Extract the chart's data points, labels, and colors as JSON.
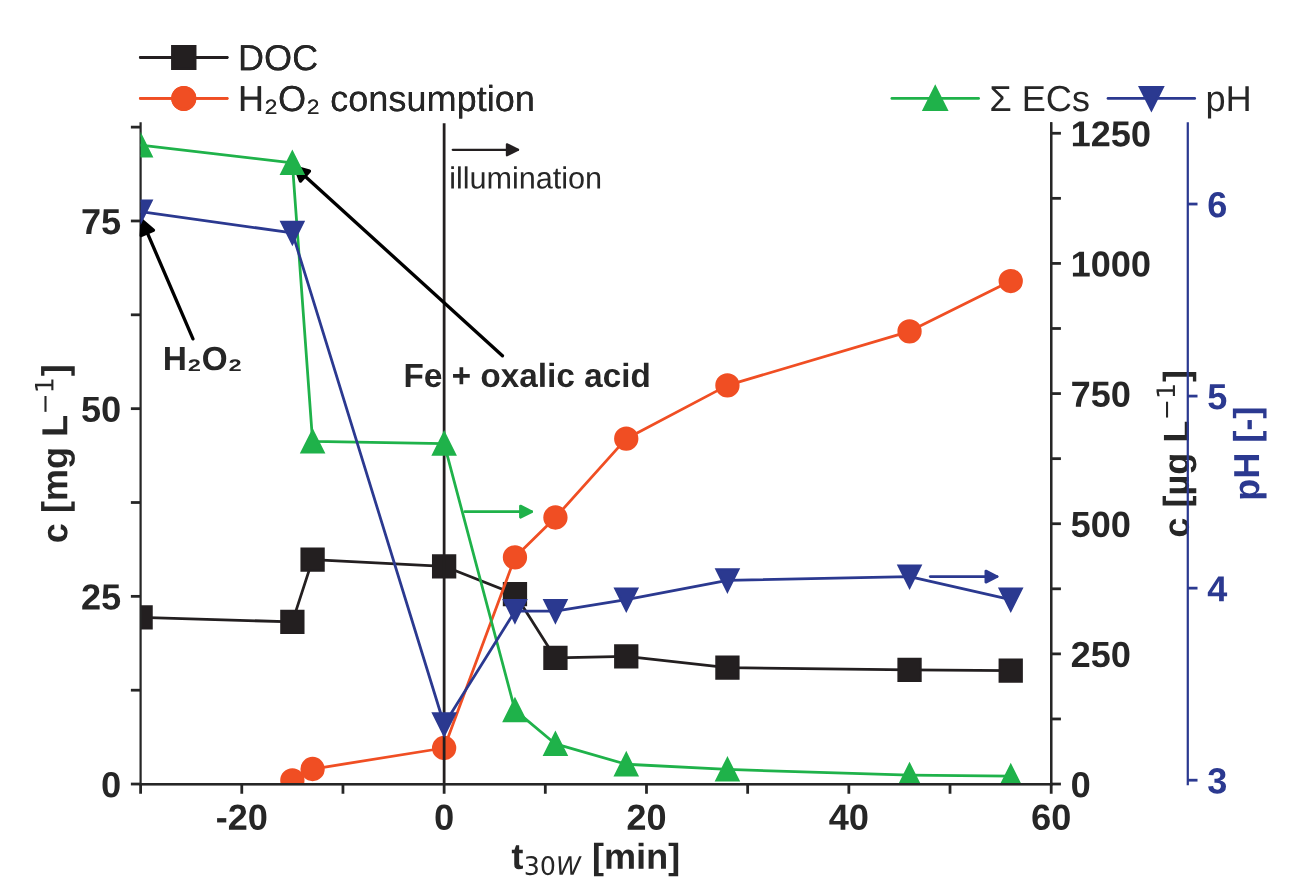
{
  "chart_data": {
    "type": "line",
    "xlabel": "t$_{30W}$ [min]",
    "ylabel": "c [mg L$^{−1}$]",
    "y2label": "c [µg L$^{−1}$]",
    "y3label": "pH [-]",
    "series": [
      {
        "name": "DOC",
        "color": "#231f20",
        "marker": "square",
        "x": [
          -30,
          -15,
          -13,
          0,
          7,
          11,
          18,
          28,
          46,
          56
        ],
        "values": [
          22.2,
          21.6,
          29.9,
          29.0,
          25.3,
          16.8,
          17.0,
          15.5,
          15.2,
          15.1
        ]
      },
      {
        "name": "H₂O₂ consumption",
        "color": "#f04e23",
        "marker": "circle",
        "x": [
          -15,
          -13,
          0,
          7,
          11,
          18,
          28,
          46,
          56
        ],
        "values": [
          0.5,
          2.0,
          4.8,
          30.2,
          35.5,
          46.0,
          53.1,
          60.3,
          67.0
        ]
      },
      {
        "name": "Σ ECs",
        "color": "#1fb24a",
        "marker": "triangle",
        "axis": "y2",
        "x": [
          -30,
          -15,
          -13,
          0,
          7,
          11,
          18,
          28,
          46,
          56
        ],
        "values": [
          1227,
          1193,
          658,
          654,
          142,
          77,
          38,
          28,
          17,
          15
        ]
      },
      {
        "name": "pH",
        "color": "#2b3990",
        "marker": "triangle_down",
        "axis": "y3",
        "x": [
          -30,
          -15,
          0,
          7,
          11,
          18,
          28,
          46,
          56
        ],
        "values": [
          5.96,
          5.85,
          3.29,
          3.88,
          3.88,
          3.94,
          4.04,
          4.06,
          3.94
        ]
      }
    ],
    "xlim": [
      -30,
      60
    ],
    "xticks": [
      {
        "value": -30,
        "label": null
      },
      -20,
      {
        "value": -10,
        "label": null
      },
      0,
      {
        "value": 10,
        "label": null
      },
      20,
      {
        "value": 30,
        "label": null
      },
      40,
      {
        "value": 50,
        "label": null
      },
      60
    ],
    "ylim": [
      0,
      88
    ],
    "yticks": [
      0,
      {
        "value": 12.5,
        "label": null
      },
      25,
      {
        "value": 37.5,
        "label": null
      },
      50,
      {
        "value": 62.5,
        "label": null
      },
      75,
      {
        "value": 87.5,
        "label": null
      }
    ],
    "y2lim": [
      0,
      1269
    ],
    "y2ticks": [
      0,
      {
        "value": 125,
        "label": null
      },
      250,
      {
        "value": 375,
        "label": null
      },
      500,
      {
        "value": 625,
        "label": null
      },
      750,
      {
        "value": 875,
        "label": null
      },
      1000,
      {
        "value": 1125,
        "label": null
      },
      1250
    ],
    "y3lim": [
      2.98,
      6.42
    ],
    "y3ticks": [
      3,
      4,
      5,
      6
    ],
    "ref_lines": [
      {
        "axis": "x",
        "value": 0,
        "label": "illumination",
        "color": "#231f20"
      }
    ],
    "annotations": [
      {
        "text": "H₂O₂",
        "x": -30,
        "y": 75.5
      },
      {
        "text": "Fe + oxalic acid",
        "x": -15,
        "y": 82.5
      }
    ],
    "legend": "top",
    "grid": false,
    "line_style": "solid"
  }
}
